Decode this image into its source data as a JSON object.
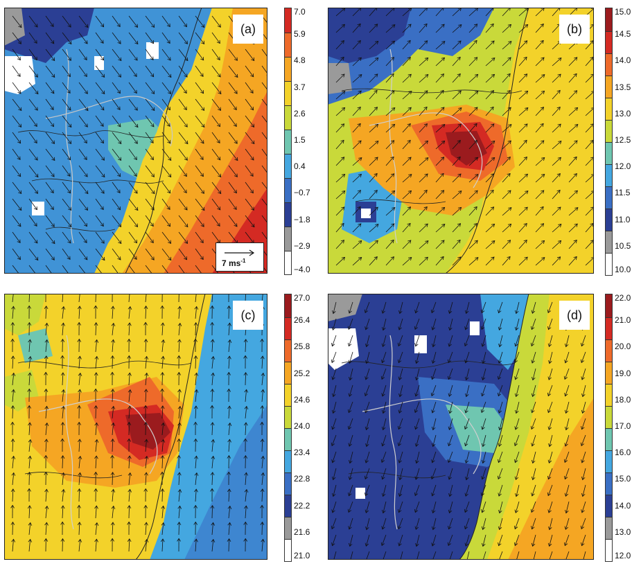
{
  "panels": [
    {
      "id": "a",
      "tag": "(a)",
      "colorbar": {
        "ticks": [
          "7.0",
          "5.9",
          "4.8",
          "3.7",
          "2.6",
          "1.5",
          "0.4",
          "−0.7",
          "−1.8",
          "−2.9",
          "−4.0"
        ],
        "colors": [
          "#ffffff",
          "#9a9a9a",
          "#2b3f94",
          "#3a6fc4",
          "#44a7e0",
          "#6fc6b0",
          "#c9d93a",
          "#f3d22a",
          "#f5a623",
          "#ee6a2a",
          "#d42a23"
        ]
      },
      "wind": {
        "direction": "toward south-southeast over land, toward south over sea"
      },
      "scale_label": "7 ms",
      "scale_superscript": "-1"
    },
    {
      "id": "b",
      "tag": "(b)",
      "colorbar": {
        "ticks": [
          "15.0",
          "14.5",
          "14.0",
          "13.5",
          "13.0",
          "12.5",
          "12.0",
          "11.5",
          "11.0",
          "10.5",
          "10.0"
        ],
        "colors": [
          "#ffffff",
          "#9a9a9a",
          "#2b3f94",
          "#3a6fc4",
          "#44a7e0",
          "#6fc6b0",
          "#c9d93a",
          "#f3d22a",
          "#f5a623",
          "#ee6a2a",
          "#d42a23",
          "#9b1b1e"
        ]
      },
      "wind": {
        "direction": "toward northeast"
      }
    },
    {
      "id": "c",
      "tag": "(c)",
      "colorbar": {
        "ticks": [
          "27.0",
          "26.4",
          "25.8",
          "25.2",
          "24.6",
          "24.0",
          "23.4",
          "22.8",
          "22.2",
          "21.6",
          "21.0"
        ],
        "colors": [
          "#ffffff",
          "#9a9a9a",
          "#2b3f94",
          "#3a6fc4",
          "#44a7e0",
          "#6fc6b0",
          "#c9d93a",
          "#f3d22a",
          "#f5a623",
          "#ee6a2a",
          "#d42a23",
          "#9b1b1e"
        ]
      },
      "wind": {
        "direction": "toward north"
      }
    },
    {
      "id": "d",
      "tag": "(d)",
      "colorbar": {
        "ticks": [
          "22.0",
          "21.0",
          "20.0",
          "19.0",
          "18.0",
          "17.0",
          "16.0",
          "15.0",
          "14.0",
          "13.0",
          "12.0"
        ],
        "colors": [
          "#ffffff",
          "#9a9a9a",
          "#2b3f94",
          "#3a6fc4",
          "#44a7e0",
          "#6fc6b0",
          "#c9d93a",
          "#f3d22a",
          "#f5a623",
          "#ee6a2a",
          "#d42a23",
          "#9b1b1e"
        ]
      },
      "wind": {
        "direction": "toward south-southwest"
      }
    }
  ]
}
